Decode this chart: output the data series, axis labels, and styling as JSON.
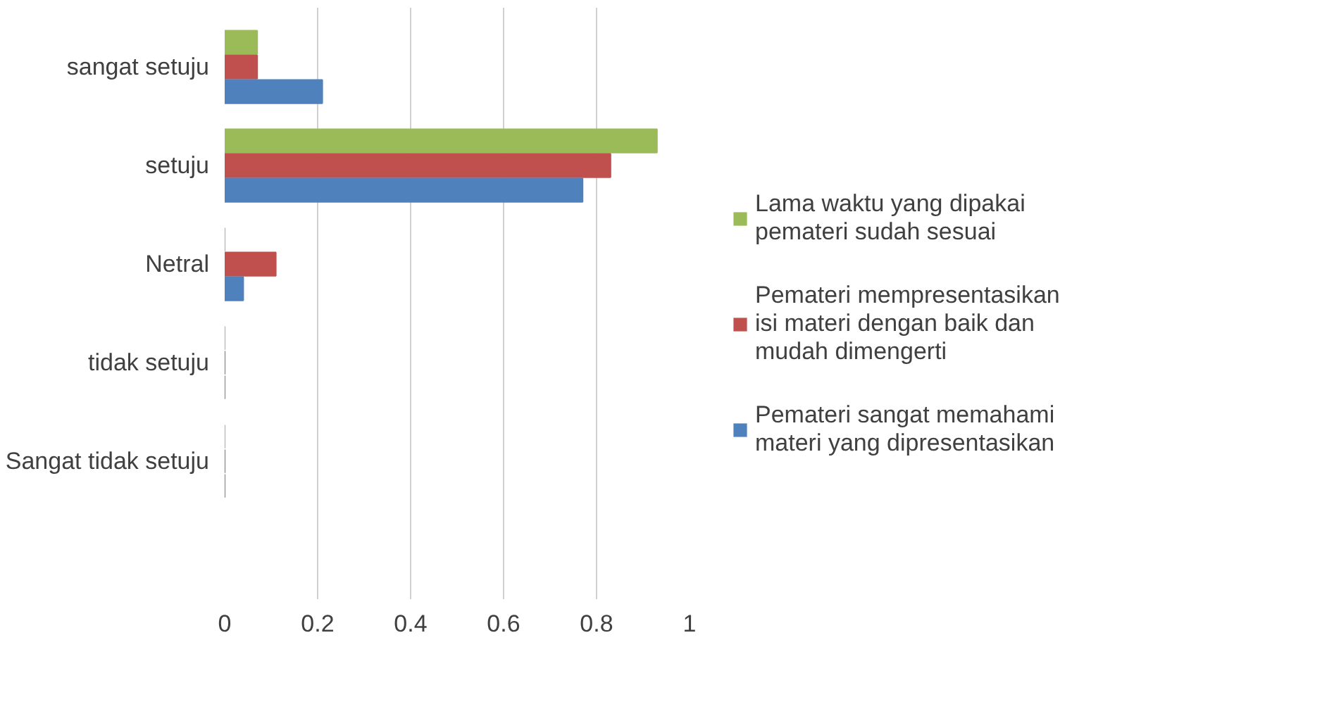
{
  "chart_data": {
    "type": "bar",
    "orientation": "horizontal",
    "categories": [
      "sangat setuju",
      "setuju",
      "Netral",
      "tidak setuju",
      "Sangat tidak setuju"
    ],
    "series": [
      {
        "name": "Lama waktu yang dipakai pemateri sudah sesuai",
        "color": "#9bbb59",
        "values": [
          0.07,
          0.93,
          0,
          0,
          0
        ]
      },
      {
        "name": "Pemateri mempresentasikan isi materi dengan baik dan mudah dimengerti",
        "color": "#c0504d",
        "values": [
          0.07,
          0.83,
          0.11,
          0,
          0
        ]
      },
      {
        "name": "Pemateri sangat memahami materi yang dipresentasikan",
        "color": "#4f81bd",
        "values": [
          0.21,
          0.77,
          0.04,
          0,
          0
        ]
      }
    ],
    "xlim": [
      0,
      1
    ],
    "xticks": [
      0,
      0.2,
      0.4,
      0.6,
      0.8,
      1
    ],
    "grid": "x",
    "legend": "right"
  }
}
